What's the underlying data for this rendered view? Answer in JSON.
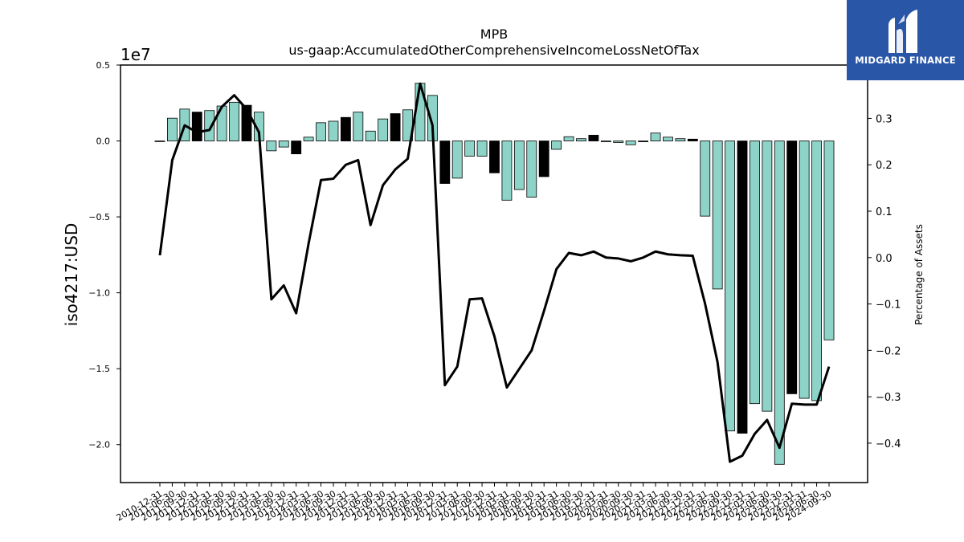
{
  "chart_data": {
    "type": "bar",
    "title": "MPB",
    "subtitle": "us-gaap:AccumulatedOtherComprehensiveIncomeLossNetOfTax",
    "ylabel": "iso4217:USD",
    "y_scale_label": "1e7",
    "y2label": "Percentage of Assets",
    "ylim": [
      -22500000.0,
      5000000.0
    ],
    "y2lim": [
      -0.485,
      0.415
    ],
    "yticks": [
      "0.5",
      "0.0",
      "−0.5",
      "−1.0",
      "−1.5",
      "−2.0"
    ],
    "y2ticks": [
      "0.3",
      "0.2",
      "0.1",
      "0.0",
      "−0.1",
      "−0.2",
      "−0.3",
      "−0.4"
    ],
    "categories": [
      "2010-12-31",
      "2011-06-30",
      "2011-09-30",
      "2011-12-31",
      "2012-03-31",
      "2012-06-30",
      "2012-09-30",
      "2012-12-31",
      "2013-03-31",
      "2013-06-30",
      "2013-09-30",
      "2013-12-31",
      "2014-03-31",
      "2014-06-30",
      "2014-09-30",
      "2014-12-31",
      "2015-03-31",
      "2015-06-30",
      "2015-09-30",
      "2015-12-31",
      "2016-03-31",
      "2016-06-30",
      "2016-09-30",
      "2016-12-31",
      "2017-03-31",
      "2017-06-30",
      "2017-09-30",
      "2017-12-31",
      "2018-03-31",
      "2018-06-30",
      "2018-09-30",
      "2018-12-31",
      "2019-03-31",
      "2019-06-30",
      "2019-09-30",
      "2019-12-31",
      "2020-03-31",
      "2020-06-30",
      "2020-09-30",
      "2020-12-31",
      "2021-03-31",
      "2021-06-30",
      "2021-09-30",
      "2021-12-31",
      "2022-03-31",
      "2022-06-30",
      "2022-09-30",
      "2022-12-31",
      "2023-03-31",
      "2023-06-30",
      "2023-09-30",
      "2023-12-31",
      "2024-03-31",
      "2024-06-30",
      "2024-09-30"
    ],
    "series": [
      {
        "values": [
          -30000,
          1500000,
          2100000,
          1900000,
          2000000,
          2300000,
          2550000,
          2350000,
          1900000,
          -650000,
          -400000,
          -850000,
          250000,
          1200000,
          1300000,
          1550000,
          1900000,
          650000,
          1450000,
          1800000,
          2050000,
          3800000,
          3000000,
          -2800000,
          -2450000,
          -1000000,
          -1000000,
          -2100000,
          -3900000,
          -3200000,
          -3700000,
          -2350000,
          -550000,
          280000,
          150000,
          380000,
          -50000,
          -100000,
          -250000,
          -50000,
          520000,
          250000,
          150000,
          120000,
          -4950000,
          -9750000,
          -19100000,
          -19250000,
          -17300000,
          -17800000,
          -21300000,
          -16650000,
          -16950000,
          -17100000,
          -13100000
        ],
        "highlighted": [
          0,
          0,
          0,
          1,
          0,
          0,
          0,
          1,
          0,
          0,
          0,
          1,
          0,
          0,
          0,
          1,
          0,
          0,
          0,
          1,
          0,
          0,
          0,
          1,
          0,
          0,
          0,
          1,
          0,
          0,
          0,
          1,
          0,
          0,
          0,
          1,
          0,
          0,
          0,
          1,
          0,
          0,
          0,
          1,
          0,
          0,
          0,
          1,
          0,
          0,
          0,
          1,
          0,
          0,
          0
        ]
      },
      {
        "values": [
          0.005,
          0.21,
          0.285,
          0.27,
          0.275,
          0.325,
          0.35,
          0.32,
          0.27,
          -0.09,
          -0.06,
          -0.12,
          0.03,
          0.167,
          0.17,
          0.2,
          0.21,
          0.07,
          0.156,
          0.19,
          0.213,
          0.375,
          0.285,
          -0.275,
          -0.235,
          -0.09,
          -0.088,
          -0.17,
          -0.28,
          -0.24,
          -0.2,
          -0.115,
          -0.025,
          0.01,
          0.005,
          0.013,
          0.0,
          -0.002,
          -0.008,
          0.0,
          0.013,
          0.007,
          0.005,
          0.004,
          -0.1,
          -0.225,
          -0.44,
          -0.427,
          -0.38,
          -0.35,
          -0.41,
          -0.315,
          -0.317,
          -0.317,
          -0.235
        ]
      }
    ],
    "colors": {
      "bar_fill": "#8dd3c7",
      "highlight_fill": "#000000",
      "bar_edge": "#000000",
      "line": "#000000"
    },
    "grid": false,
    "legend": "none"
  },
  "logo": {
    "name": "MIDGARD FINANCE",
    "background": "#2a56a8"
  }
}
